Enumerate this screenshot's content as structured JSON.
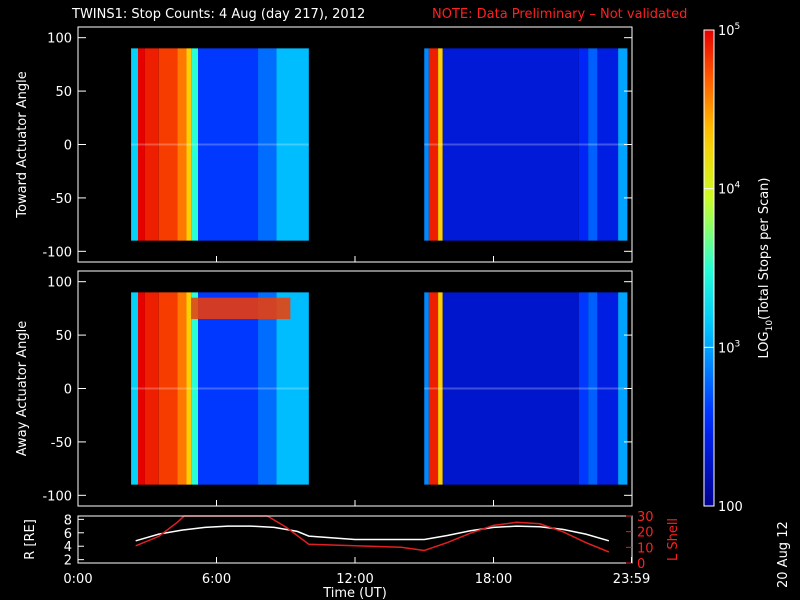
{
  "title": "TWINS1: Stop Counts:  4 Aug (day 217), 2012",
  "note": "NOTE: Data Preliminary – Not validated",
  "stamp": "20 Aug 12",
  "colors": {
    "note": "#ff2020",
    "shell": "#e02020",
    "radius": "#ffffff",
    "frame": "#ffffff"
  },
  "chart_data": [
    {
      "type": "heatmap",
      "ylabel": "Toward Actuator Angle",
      "xlim": [
        0,
        24
      ],
      "ylim": [
        -110,
        110
      ],
      "yticks": [
        100,
        50,
        0,
        -50,
        -100
      ],
      "y_extent": [
        -90,
        90
      ],
      "blocks": [
        {
          "x_range": [
            2.3,
            10.0
          ],
          "segments": [
            {
              "x0": 2.3,
              "x1": 2.6,
              "log": 3.2
            },
            {
              "x0": 2.6,
              "x1": 2.9,
              "log": 5.0
            },
            {
              "x0": 2.9,
              "x1": 3.5,
              "log": 4.9
            },
            {
              "x0": 3.5,
              "x1": 4.3,
              "log": 4.8
            },
            {
              "x0": 4.3,
              "x1": 4.7,
              "log": 4.6
            },
            {
              "x0": 4.7,
              "x1": 4.9,
              "log": 4.3
            },
            {
              "x0": 4.9,
              "x1": 5.2,
              "log": 3.5
            },
            {
              "x0": 5.2,
              "x1": 7.8,
              "log": 2.6
            },
            {
              "x0": 7.8,
              "x1": 8.6,
              "log": 2.8
            },
            {
              "x0": 8.6,
              "x1": 10.0,
              "log": 3.1
            }
          ]
        },
        {
          "x_range": [
            15.0,
            23.8
          ],
          "segments": [
            {
              "x0": 15.0,
              "x1": 15.2,
              "log": 2.9
            },
            {
              "x0": 15.2,
              "x1": 15.6,
              "log": 4.9
            },
            {
              "x0": 15.6,
              "x1": 15.8,
              "log": 4.3
            },
            {
              "x0": 15.8,
              "x1": 21.7,
              "log": 2.35
            },
            {
              "x0": 21.7,
              "x1": 22.1,
              "log": 2.5
            },
            {
              "x0": 22.1,
              "x1": 22.5,
              "log": 2.75
            },
            {
              "x0": 22.5,
              "x1": 23.4,
              "log": 2.4
            },
            {
              "x0": 23.4,
              "x1": 23.8,
              "log": 3.0
            }
          ]
        }
      ]
    },
    {
      "type": "heatmap",
      "ylabel": "Away Actuator Angle",
      "xlim": [
        0,
        24
      ],
      "ylim": [
        -110,
        110
      ],
      "yticks": [
        100,
        50,
        0,
        -50,
        -100
      ],
      "y_extent": [
        -90,
        90
      ],
      "blocks": [
        {
          "x_range": [
            2.3,
            10.0
          ],
          "segments": [
            {
              "x0": 2.3,
              "x1": 2.6,
              "log": 3.2
            },
            {
              "x0": 2.6,
              "x1": 2.9,
              "log": 5.0
            },
            {
              "x0": 2.9,
              "x1": 3.5,
              "log": 4.9
            },
            {
              "x0": 3.5,
              "x1": 4.3,
              "log": 4.8
            },
            {
              "x0": 4.3,
              "x1": 4.7,
              "log": 4.6
            },
            {
              "x0": 4.7,
              "x1": 4.9,
              "log": 4.3
            },
            {
              "x0": 4.9,
              "x1": 5.2,
              "log": 3.5
            },
            {
              "x0": 5.2,
              "x1": 7.8,
              "log": 2.6
            },
            {
              "x0": 7.8,
              "x1": 8.6,
              "log": 2.8
            },
            {
              "x0": 8.6,
              "x1": 10.0,
              "log": 3.1
            }
          ],
          "band": {
            "x0": 4.9,
            "x1": 9.2,
            "y0": 65,
            "y1": 85,
            "log": 4.8
          }
        },
        {
          "x_range": [
            15.0,
            23.8
          ],
          "segments": [
            {
              "x0": 15.0,
              "x1": 15.2,
              "log": 2.9
            },
            {
              "x0": 15.2,
              "x1": 15.6,
              "log": 4.9
            },
            {
              "x0": 15.6,
              "x1": 15.8,
              "log": 4.3
            },
            {
              "x0": 15.8,
              "x1": 21.7,
              "log": 2.3
            },
            {
              "x0": 21.7,
              "x1": 22.1,
              "log": 2.6
            },
            {
              "x0": 22.1,
              "x1": 22.5,
              "log": 2.75
            },
            {
              "x0": 22.5,
              "x1": 23.4,
              "log": 2.4
            },
            {
              "x0": 23.4,
              "x1": 23.8,
              "log": 3.0
            }
          ]
        }
      ]
    },
    {
      "type": "line",
      "xlabel": "Time (UT)",
      "xticks": [
        "0:00",
        "6:00",
        "12:00",
        "18:00",
        "23:59"
      ],
      "xtick_values": [
        0,
        6,
        12,
        18,
        23.98
      ],
      "xlim": [
        0,
        24
      ],
      "ylabel_left": "R [RE]",
      "ylabel_right": "L Shell",
      "yticks_left": [
        2,
        4,
        6,
        8
      ],
      "ylim_left": [
        1.5,
        8.5
      ],
      "yticks_right": [
        0,
        10,
        20,
        30
      ],
      "ylim_right": [
        0,
        30
      ],
      "series": [
        {
          "axis": "left",
          "x": [
            2.5,
            3.5,
            4.5,
            5.5,
            6.5,
            7.5,
            8.5,
            9.5,
            10.0,
            12.0,
            14.0,
            15.0,
            16.0,
            17.0,
            18.0,
            19.0,
            20.0,
            21.0,
            22.0,
            23.0
          ],
          "y": [
            4.8,
            5.8,
            6.4,
            6.8,
            7.0,
            7.0,
            6.8,
            6.2,
            5.5,
            5.0,
            5.0,
            5.0,
            5.6,
            6.3,
            6.8,
            7.0,
            6.9,
            6.5,
            5.8,
            4.8
          ]
        },
        {
          "axis": "right",
          "x": [
            2.5,
            3.5,
            4.3,
            4.6,
            8.2,
            9.0,
            10.0,
            12.0,
            14.0,
            15.0,
            16.0,
            17.0,
            18.0,
            19.0,
            20.0,
            21.0,
            22.0,
            23.0
          ],
          "y": [
            11,
            17,
            26,
            30,
            30,
            23,
            12,
            11,
            10,
            8,
            13,
            19,
            24,
            26,
            25,
            20,
            13,
            7
          ]
        }
      ]
    }
  ],
  "colorbar": {
    "title": "LOG10(Total Stops per Scan)",
    "title_main": "LOG",
    "title_sub": "10",
    "title_rest": "(Total Stops per Scan)",
    "range_log": [
      2,
      5
    ],
    "labels": [
      {
        "base": "10",
        "exp": "5",
        "log": 5
      },
      {
        "base": "10",
        "exp": "4",
        "log": 4
      },
      {
        "base": "10",
        "exp": "3",
        "log": 3
      },
      {
        "text": "100",
        "log": 2
      }
    ]
  }
}
